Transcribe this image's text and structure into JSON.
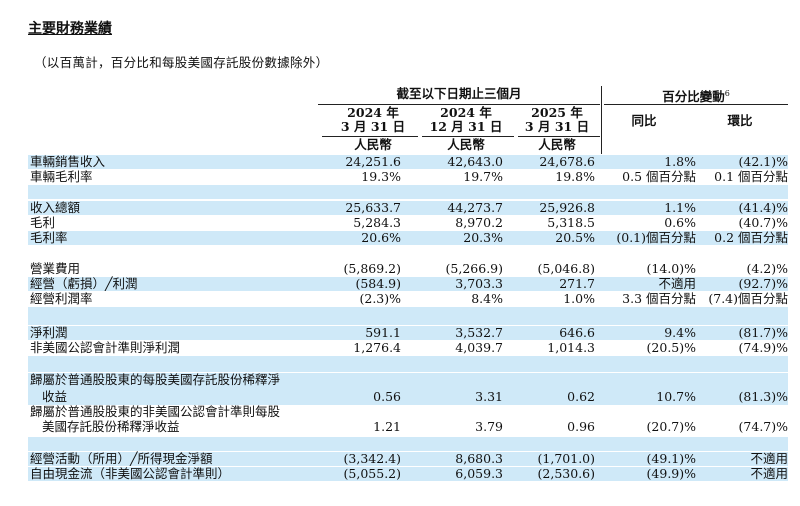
{
  "title": "主要財務業績",
  "subtitle": "（以百萬計，百分比和每股美國存託股份數據除外）",
  "header": {
    "period_group": "截至以下日期止三個月",
    "change_group": "百分比變動",
    "change_footnote": "6",
    "col1_year": "2024 年",
    "col1_date": "3 月 31 日",
    "col2_year": "2024 年",
    "col2_date": "12 月 31 日",
    "col3_year": "2025 年",
    "col3_date": "3 月 31 日",
    "currency": "人民幣",
    "yoy": "同比",
    "qoq": "環比"
  },
  "rows": [
    {
      "label": "車輛銷售收入",
      "v1": "24,251.6",
      "v2": "42,643.0",
      "v3": "24,678.6",
      "yoy": "1.8%",
      "qoq": "(42.1)%"
    },
    {
      "label": "車輛毛利率",
      "v1": "19.3%",
      "v2": "19.7%",
      "v3": "19.8%",
      "yoy": "0.5 個百分點",
      "qoq": "0.1 個百分點"
    },
    {
      "label": "收入總額",
      "v1": "25,633.7",
      "v2": "44,273.7",
      "v3": "25,926.8",
      "yoy": "1.1%",
      "qoq": "(41.4)%"
    },
    {
      "label": "毛利",
      "v1": "5,284.3",
      "v2": "8,970.2",
      "v3": "5,318.5",
      "yoy": "0.6%",
      "qoq": "(40.7)%"
    },
    {
      "label": "毛利率",
      "v1": "20.6%",
      "v2": "20.3%",
      "v3": "20.5%",
      "yoy": "(0.1)個百分點",
      "qoq": "0.2 個百分點"
    },
    {
      "label": "營業費用",
      "v1": "(5,869.2)",
      "v2": "(5,266.9)",
      "v3": "(5,046.8)",
      "yoy": "(14.0)%",
      "qoq": "(4.2)%"
    },
    {
      "label": "經營（虧損）╱利潤",
      "v1": "(584.9)",
      "v2": "3,703.3",
      "v3": "271.7",
      "yoy": "不適用",
      "qoq": "(92.7)%"
    },
    {
      "label": "經營利潤率",
      "v1": "(2.3)%",
      "v2": "8.4%",
      "v3": "1.0%",
      "yoy": "3.3 個百分點",
      "qoq": "(7.4)個百分點"
    },
    {
      "label": "淨利潤",
      "v1": "591.1",
      "v2": "3,532.7",
      "v3": "646.6",
      "yoy": "9.4%",
      "qoq": "(81.7)%"
    },
    {
      "label": "非美國公認會計準則淨利潤",
      "v1": "1,276.4",
      "v2": "4,039.7",
      "v3": "1,014.3",
      "yoy": "(20.5)%",
      "qoq": "(74.9)%"
    },
    {
      "label": "歸屬於普通股股東的每股美國存託股份稀釋淨",
      "label2": "收益",
      "v1": "0.56",
      "v2": "3.31",
      "v3": "0.62",
      "yoy": "10.7%",
      "qoq": "(81.3)%"
    },
    {
      "label": "歸屬於普通股股東的非美國公認會計準則每股",
      "label2": "美國存託股份稀釋淨收益",
      "v1": "1.21",
      "v2": "3.79",
      "v3": "0.96",
      "yoy": "(20.7)%",
      "qoq": "(74.7)%"
    },
    {
      "label": "經營活動（所用）╱所得現金淨額",
      "v1": "(3,342.4)",
      "v2": "8,680.3",
      "v3": "(1,701.0)",
      "yoy": "(49.1)%",
      "qoq": "不適用"
    },
    {
      "label": "自由現金流（非美國公認會計準則）",
      "v1": "(5,055.2)",
      "v2": "6,059.3",
      "v3": "(2,530.6)",
      "yoy": "(49.9)%",
      "qoq": "不適用"
    }
  ]
}
